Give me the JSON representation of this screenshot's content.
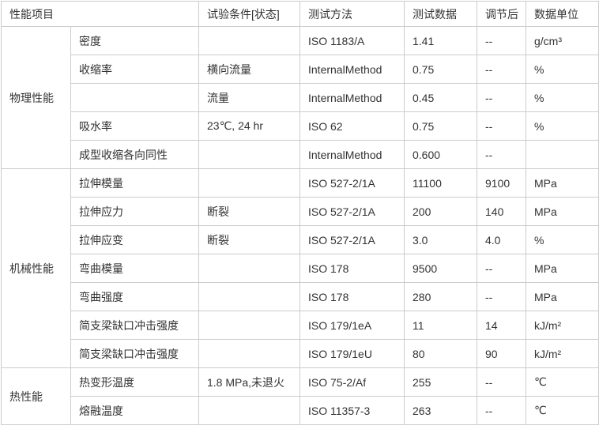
{
  "table": {
    "columns": [
      "性能项目",
      "试验条件[状态]",
      "测试方法",
      "测试数据",
      "调节后",
      "数据单位"
    ],
    "groups": [
      {
        "name": "物理性能",
        "rows": [
          {
            "property": "密度",
            "condition": "",
            "method": "ISO 1183/A",
            "value": "1.41",
            "conditioned": "--",
            "unit": "g/cm³"
          },
          {
            "property": "收缩率",
            "condition": "横向流量",
            "method": "InternalMethod",
            "value": "0.75",
            "conditioned": "--",
            "unit": "%"
          },
          {
            "property": "",
            "condition": "流量",
            "method": "InternalMethod",
            "value": "0.45",
            "conditioned": "--",
            "unit": "%"
          },
          {
            "property": "吸水率",
            "condition": "23℃, 24 hr",
            "method": "ISO 62",
            "value": "0.75",
            "conditioned": "--",
            "unit": "%"
          },
          {
            "property": "成型收缩各向同性",
            "condition": "",
            "method": "InternalMethod",
            "value": "0.600",
            "conditioned": "--",
            "unit": ""
          }
        ]
      },
      {
        "name": "机械性能",
        "rows": [
          {
            "property": "拉伸模量",
            "condition": "",
            "method": "ISO 527-2/1A",
            "value": "11100",
            "conditioned": "9100",
            "unit": "MPa"
          },
          {
            "property": "拉伸应力",
            "condition": "断裂",
            "method": "ISO 527-2/1A",
            "value": "200",
            "conditioned": "140",
            "unit": "MPa"
          },
          {
            "property": "拉伸应变",
            "condition": "断裂",
            "method": "ISO 527-2/1A",
            "value": "3.0",
            "conditioned": "4.0",
            "unit": "%"
          },
          {
            "property": "弯曲模量",
            "condition": "",
            "method": "ISO 178",
            "value": "9500",
            "conditioned": "--",
            "unit": "MPa"
          },
          {
            "property": "弯曲强度",
            "condition": "",
            "method": "ISO 178",
            "value": "280",
            "conditioned": "--",
            "unit": "MPa"
          },
          {
            "property": "简支梁缺口冲击强度",
            "condition": "",
            "method": "ISO 179/1eA",
            "value": "11",
            "conditioned": "14",
            "unit": "kJ/m²"
          },
          {
            "property": "简支梁缺口冲击强度",
            "condition": "",
            "method": "ISO 179/1eU",
            "value": "80",
            "conditioned": "90",
            "unit": "kJ/m²"
          }
        ]
      },
      {
        "name": "热性能",
        "rows": [
          {
            "property": "热变形温度",
            "condition": "1.8 MPa,未退火",
            "method": "ISO 75-2/Af",
            "value": "255",
            "conditioned": "--",
            "unit": "℃"
          },
          {
            "property": "熔融温度",
            "condition": "",
            "method": "ISO 11357-3",
            "value": "263",
            "conditioned": "--",
            "unit": "℃"
          }
        ]
      }
    ]
  },
  "colors": {
    "border": "#cccccc",
    "text": "#333333",
    "background": "#ffffff"
  }
}
